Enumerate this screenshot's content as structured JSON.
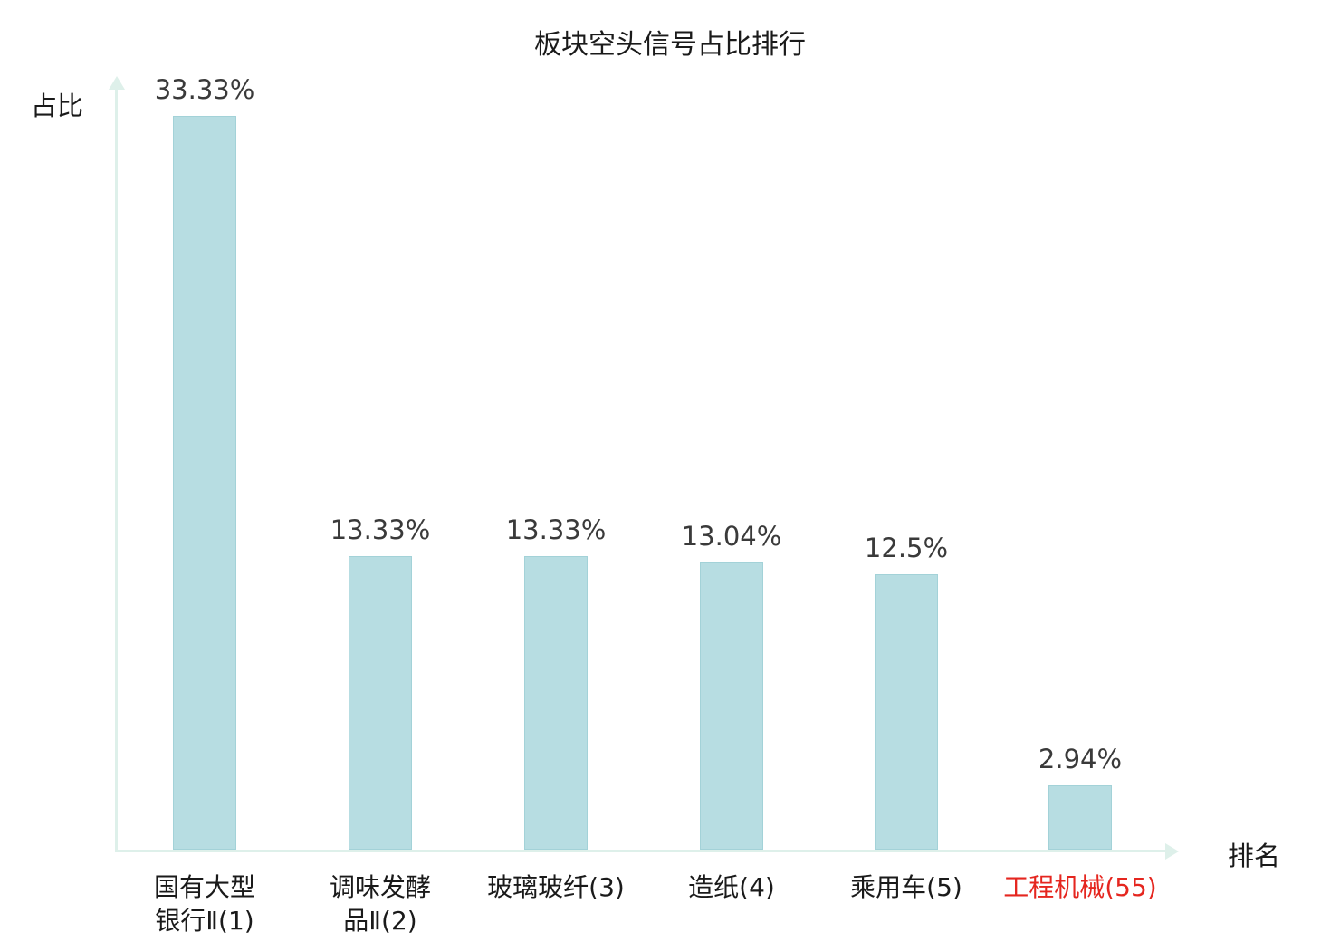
{
  "title": "板块空头信号占比排行",
  "axes": {
    "y_label": "占比",
    "x_label": "排名"
  },
  "chart_data": {
    "type": "bar",
    "title": "板块空头信号占比排行",
    "xlabel": "排名",
    "ylabel": "占比",
    "categories": [
      "国有大型银行Ⅱ(1)",
      "调味发酵品Ⅱ(2)",
      "玻璃玻纤(3)",
      "造纸(4)",
      "乘用车(5)",
      "工程机械(55)"
    ],
    "category_lines": [
      [
        "国有大型",
        "银行Ⅱ(1)"
      ],
      [
        "调味发酵",
        "品Ⅱ(2)"
      ],
      [
        "玻璃玻纤(3)"
      ],
      [
        "造纸(4)"
      ],
      [
        "乘用车(5)"
      ],
      [
        "工程机械(55)"
      ]
    ],
    "values": [
      33.33,
      13.33,
      13.33,
      13.04,
      12.5,
      2.94
    ],
    "value_labels": [
      "33.33%",
      "13.33%",
      "13.33%",
      "13.04%",
      "12.5%",
      "2.94%"
    ],
    "highlight_index": 5,
    "ylim": [
      0,
      34
    ],
    "grid": false,
    "legend": "none",
    "colors": {
      "bar_fill": "#b7dde2",
      "bar_border": "#a3d2d8",
      "axis": "#def0ea",
      "value_text": "#3a3a3a",
      "category_text": "#1a1a1a",
      "highlight_text": "#e5261f",
      "title_text": "#1a1a1a"
    }
  }
}
